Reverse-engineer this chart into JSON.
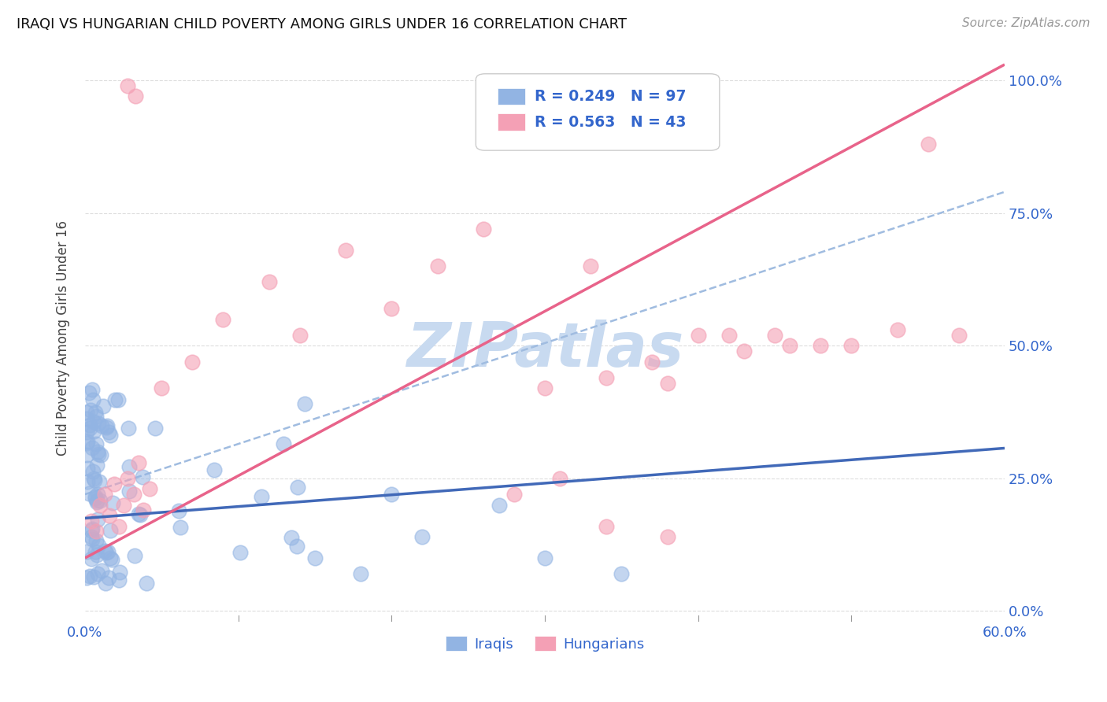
{
  "title": "IRAQI VS HUNGARIAN CHILD POVERTY AMONG GIRLS UNDER 16 CORRELATION CHART",
  "source": "Source: ZipAtlas.com",
  "ylabel": "Child Poverty Among Girls Under 16",
  "iraqis_R": 0.249,
  "iraqis_N": 97,
  "hungarians_R": 0.563,
  "hungarians_N": 43,
  "iraqis_color": "#92b4e3",
  "hungarians_color": "#f4a0b5",
  "iraqis_line_color": "#4169b8",
  "hungarians_line_color": "#e8638a",
  "dashed_line_color": "#a0bce0",
  "watermark": "ZIPatlas",
  "watermark_color": "#c8daf0",
  "legend_text_color": "#3366cc",
  "background_color": "#ffffff",
  "grid_color": "#dddddd",
  "xlim": [
    0.0,
    0.6
  ],
  "ylim": [
    -0.02,
    1.05
  ],
  "xtick_pos": [
    0.0,
    0.1,
    0.2,
    0.3,
    0.4,
    0.5,
    0.6
  ],
  "xtick_labels": [
    "0.0%",
    "",
    "",
    "",
    "",
    "",
    "60.0%"
  ],
  "ytick_pos": [
    0.0,
    0.25,
    0.5,
    0.75,
    1.0
  ],
  "ytick_labels": [
    "0.0%",
    "25.0%",
    "50.0%",
    "75.0%",
    "100.0%"
  ],
  "iraqis_line_intercept": 0.175,
  "iraqis_line_slope": 0.22,
  "hungarians_line_intercept": 0.1,
  "hungarians_line_slope": 1.55,
  "dashed_line_intercept": 0.22,
  "dashed_line_slope": 0.95
}
